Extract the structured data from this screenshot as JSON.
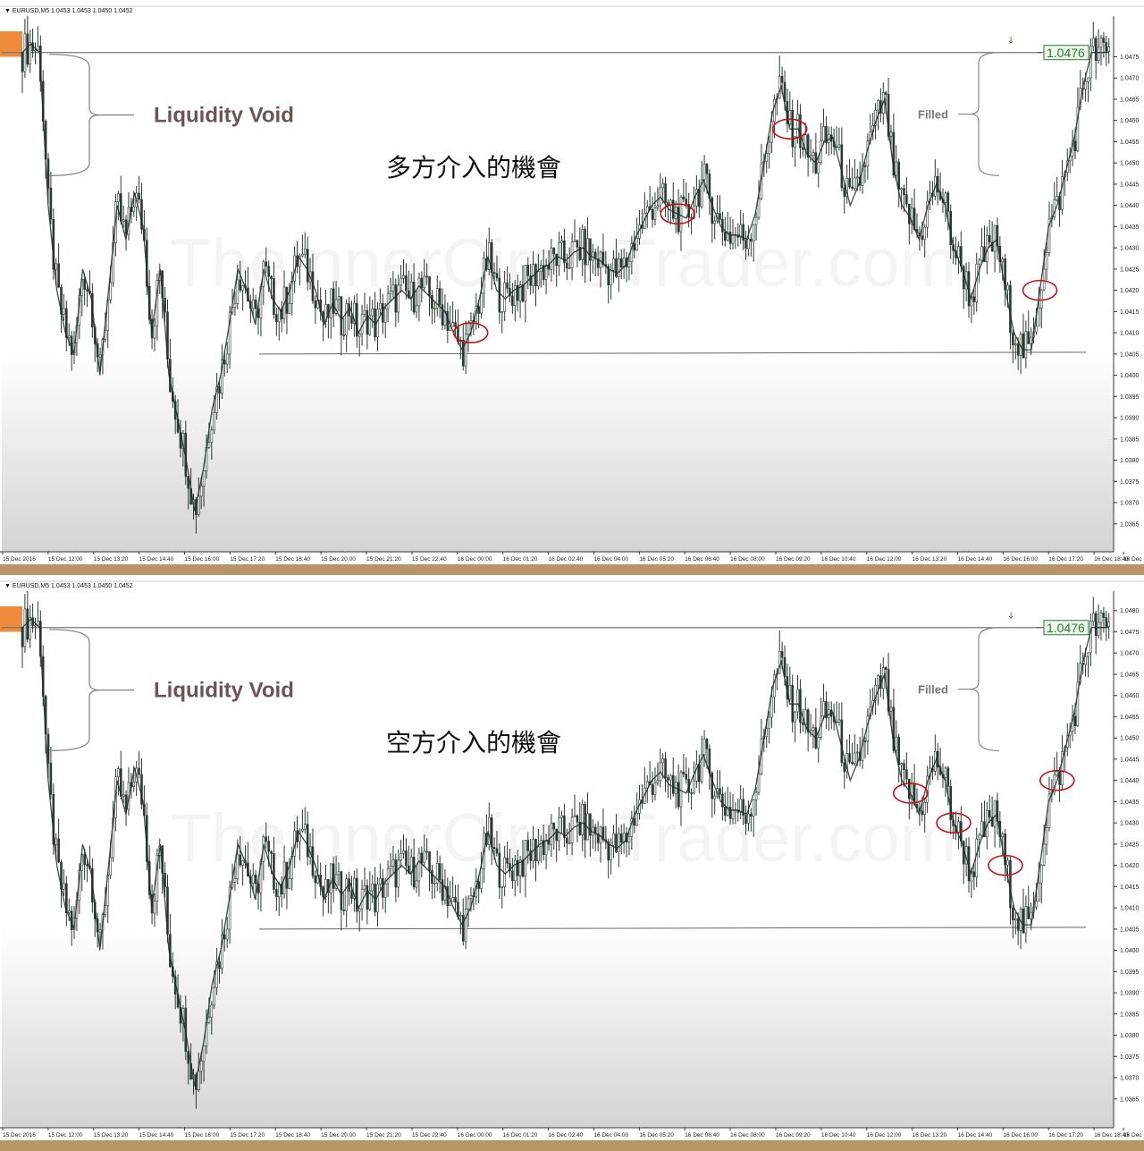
{
  "panels": [
    {
      "id": "top",
      "symbol_header": "EURUSD,M5  1.0453 1.0453 1.0450 1.0452",
      "void_label": "Liquidity Void",
      "filled_label": "Filled",
      "caption": "多方介入的機會",
      "price_tag": "1.0476",
      "watermark": "TheInnerCircleTrader.com",
      "circle_times": [
        52,
        76,
        89,
        118
      ]
    },
    {
      "id": "bottom",
      "symbol_header": "EURUSD,M5  1.0453 1.0453 1.0450 1.0452",
      "void_label": "Liquidity Void",
      "filled_label": "Filled",
      "caption": "空方介入的機會",
      "price_tag": "1.0476",
      "watermark": "TheInnerCircleTrader.com",
      "circle_times": [
        103,
        108,
        114,
        120
      ]
    }
  ],
  "chart_data": {
    "type": "line",
    "instrument": "EURUSD,M5",
    "ylim": [
      1.0362,
      1.0481
    ],
    "yticks": [
      "1.0365",
      "1.0370",
      "1.0375",
      "1.0380",
      "1.0385",
      "1.0390",
      "1.0395",
      "1.0400",
      "1.0405",
      "1.0410",
      "1.0415",
      "1.0420",
      "1.0425",
      "1.0430",
      "1.0435",
      "1.0440",
      "1.0445",
      "1.0450",
      "1.0455",
      "1.0460",
      "1.0465",
      "1.0470",
      "1.0475"
    ],
    "top_yticks_extra": [],
    "bottom_yticks_extra": [
      "1.0480"
    ],
    "xlim": [
      0,
      128
    ],
    "xticks": [
      "15 Dec 2016",
      "15 Dec 12:00",
      "15 Dec 13:20",
      "15 Dec 14:40",
      "15 Dec 16:00",
      "15 Dec 17:20",
      "15 Dec 18:40",
      "15 Dec 20:00",
      "15 Dec 21:20",
      "15 Dec 22:40",
      "16 Dec 00:00",
      "16 Dec 01:20",
      "16 Dec 02:40",
      "16 Dec 04:00",
      "16 Dec 05:20",
      "16 Dec 06:40",
      "16 Dec 08:00",
      "16 Dec 09:20",
      "16 Dec 10:40",
      "16 Dec 12:00",
      "16 Dec 13:20",
      "16 Dec 14:40",
      "16 Dec 16:00",
      "16 Dec 17:20",
      "16 Dec 18:40",
      "16 Dec"
    ],
    "levels": {
      "void_high": 1.0476,
      "support": 1.0405
    },
    "series": [
      {
        "x": [
          0,
          1,
          2,
          3,
          4,
          5,
          6,
          7,
          8,
          9,
          10,
          11,
          12,
          13,
          14,
          15,
          16,
          17,
          18,
          19,
          20,
          21,
          22,
          23,
          24,
          25,
          26,
          27,
          28,
          29,
          30,
          31,
          32,
          33,
          34,
          35,
          36,
          37,
          38,
          39,
          40,
          41,
          42,
          43,
          44,
          45,
          46,
          47,
          48,
          49,
          50,
          51,
          52,
          53,
          54,
          55,
          56,
          57,
          58,
          59,
          60,
          61,
          62,
          63,
          64,
          65,
          66,
          67,
          68,
          69,
          70,
          71,
          72,
          73,
          74,
          75,
          76,
          77,
          78,
          79,
          80,
          81,
          82,
          83,
          84,
          85,
          86,
          87,
          88,
          89,
          90,
          91,
          92,
          93,
          94,
          95,
          96,
          97,
          98,
          99,
          100,
          101,
          102,
          103,
          104,
          105,
          106,
          107,
          108,
          109,
          110,
          111,
          112,
          113,
          114,
          115,
          116,
          117,
          118,
          119,
          120,
          121,
          122,
          123,
          124,
          125,
          126
        ],
        "y": [
          1.0476,
          1.0478,
          1.0476,
          1.044,
          1.042,
          1.041,
          1.0405,
          1.0425,
          1.0418,
          1.04,
          1.042,
          1.044,
          1.0432,
          1.0443,
          1.0435,
          1.041,
          1.0425,
          1.04,
          1.039,
          1.038,
          1.0368,
          1.0378,
          1.0392,
          1.04,
          1.0412,
          1.0425,
          1.042,
          1.0412,
          1.0425,
          1.0418,
          1.0415,
          1.042,
          1.0428,
          1.0425,
          1.042,
          1.0412,
          1.0417,
          1.0413,
          1.0416,
          1.041,
          1.0414,
          1.0412,
          1.0416,
          1.0418,
          1.042,
          1.0418,
          1.0421,
          1.0419,
          1.0417,
          1.0415,
          1.041,
          1.0406,
          1.041,
          1.0418,
          1.0428,
          1.042,
          1.0418,
          1.042,
          1.0421,
          1.0423,
          1.0425,
          1.0426,
          1.0428,
          1.0427,
          1.0429,
          1.043,
          1.0428,
          1.0427,
          1.0425,
          1.0424,
          1.0426,
          1.0432,
          1.0436,
          1.044,
          1.0442,
          1.0439,
          1.0438,
          1.0437,
          1.0442,
          1.0446,
          1.044,
          1.0435,
          1.0433,
          1.0433,
          1.0432,
          1.0438,
          1.045,
          1.0462,
          1.0468,
          1.0458,
          1.0458,
          1.0452,
          1.045,
          1.0455,
          1.0456,
          1.0448,
          1.044,
          1.0445,
          1.0453,
          1.046,
          1.0465,
          1.0449,
          1.044,
          1.0437,
          1.0432,
          1.044,
          1.0445,
          1.044,
          1.043,
          1.0425,
          1.0418,
          1.0425,
          1.043,
          1.0432,
          1.042,
          1.041,
          1.0406,
          1.0406,
          1.042,
          1.0435,
          1.044,
          1.0448,
          1.0456,
          1.0468,
          1.0476,
          1.0476,
          1.0476
        ]
      }
    ]
  }
}
